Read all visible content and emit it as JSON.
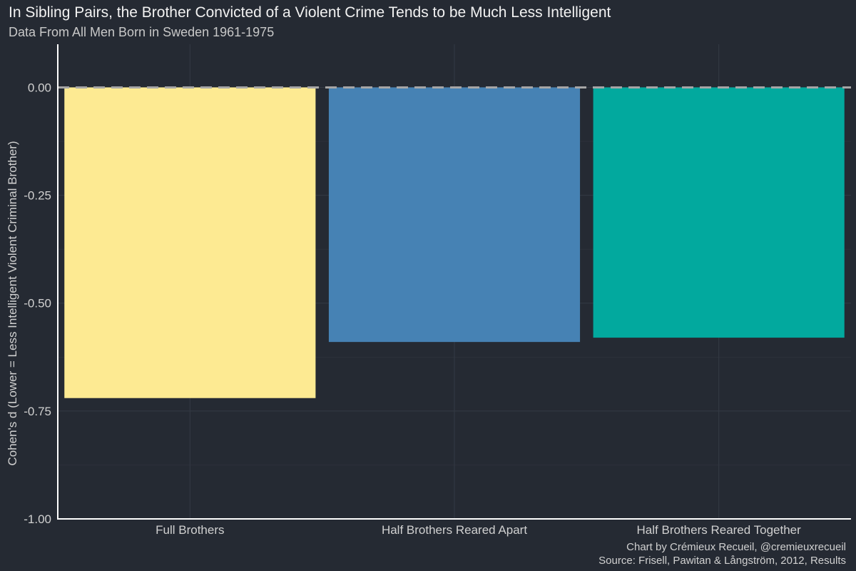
{
  "title": "In Sibling Pairs, the Brother Convicted of a Violent Crime Tends to be Much Less Intelligent",
  "subtitle": "Data From All Men Born in Sweden 1961-1975",
  "caption_line1": "Chart by Crémieux Recueil, @cremieuxrecueil",
  "caption_line2": "Source: Frisell, Pawitan & Långström, 2012, Results",
  "colors": {
    "background": "#252a33",
    "grid": "#343a44",
    "reference_line": "#a6a6a6",
    "axis": "#ffffff"
  },
  "chart_data": {
    "type": "bar",
    "title": "In Sibling Pairs, the Brother Convicted of a Violent Crime Tends to be Much Less Intelligent",
    "subtitle": "Data From All Men Born in Sweden 1961-1975",
    "xlabel": "",
    "ylabel": "Cohen's d (Lower = Less Intelligent Violent Criminal Brother)",
    "categories": [
      "Full Brothers",
      "Half Brothers Reared Apart",
      "Half Brothers Reared Together"
    ],
    "values": [
      -0.72,
      -0.59,
      -0.58
    ],
    "bar_colors": [
      "#fdea92",
      "#4682b4",
      "#02a99e"
    ],
    "ylim": [
      -1.0,
      0.1
    ],
    "yticks": [
      0.0,
      -0.25,
      -0.5,
      -0.75,
      -1.0
    ],
    "ytick_labels": [
      "0.00",
      "-0.25",
      "-0.50",
      "-0.75",
      "-1.00"
    ],
    "reference_line": 0.0,
    "grid": true,
    "legend": "none"
  }
}
